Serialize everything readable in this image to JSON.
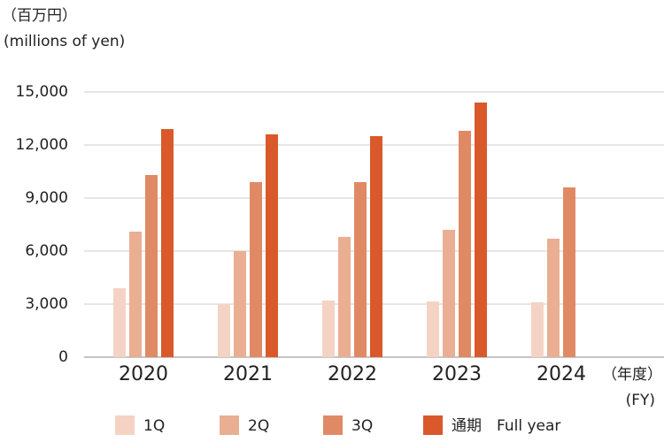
{
  "chart_data": {
    "type": "bar",
    "y_label_ja": "（百万円）",
    "y_label_en": "(millions of yen)",
    "x_label_ja": "（年度）",
    "x_label_en": "(FY)",
    "categories": [
      "2020",
      "2021",
      "2022",
      "2023",
      "2024"
    ],
    "series": [
      {
        "name": "1Q",
        "color": "#f5d3c4",
        "values": [
          3900,
          3000,
          3200,
          3150,
          3100
        ]
      },
      {
        "name": "2Q",
        "color": "#eaae93",
        "values": [
          7100,
          6000,
          6800,
          7200,
          6700
        ]
      },
      {
        "name": "3Q",
        "color": "#e08a65",
        "values": [
          10300,
          9900,
          9900,
          12800,
          9600
        ]
      },
      {
        "name": "通期　Full year",
        "color": "#d9592b",
        "values": [
          12900,
          12600,
          12500,
          14400,
          null
        ]
      }
    ],
    "ylim": [
      0,
      15000
    ],
    "yticks": [
      0,
      {
        "value": 3000,
        "label": "3,000"
      },
      {
        "value": 6000,
        "label": "6,000"
      },
      {
        "value": 9000,
        "label": "9,000"
      },
      {
        "value": 12000,
        "label": "12,000"
      },
      {
        "value": 15000,
        "label": "15,000"
      }
    ],
    "grid": true
  }
}
